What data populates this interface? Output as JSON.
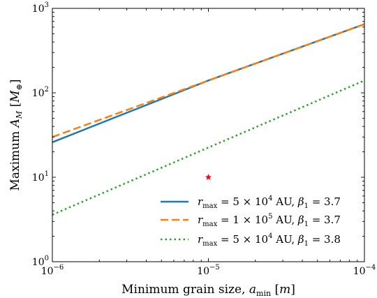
{
  "chart_data": {
    "type": "line",
    "title": "",
    "xlabel": "Minimum grain size, a_min [m]",
    "ylabel": "Maximum A_M [M_⊕]",
    "xscale": "log",
    "yscale": "log",
    "xlim": [
      1e-06,
      0.0001
    ],
    "ylim": [
      1,
      1000
    ],
    "grid": false,
    "legend_position": "lower-right",
    "x_ticks": [
      {
        "value": 1e-06,
        "base": "10",
        "exp": "−6"
      },
      {
        "value": 1e-05,
        "base": "10",
        "exp": "−5"
      },
      {
        "value": 0.0001,
        "base": "10",
        "exp": "−4"
      }
    ],
    "y_ticks": [
      {
        "value": 1,
        "base": "10",
        "exp": "0"
      },
      {
        "value": 10,
        "base": "10",
        "exp": "1"
      },
      {
        "value": 100,
        "base": "10",
        "exp": "2"
      },
      {
        "value": 1000,
        "base": "10",
        "exp": "3"
      }
    ],
    "series": [
      {
        "name": "r_max = 5 × 10^4 AU, β_1 = 3.7",
        "color": "#1f77b4",
        "style": "solid",
        "x": [
          1e-06,
          1e-05,
          0.0001
        ],
        "y": [
          26,
          140,
          650
        ]
      },
      {
        "name": "r_max = 1 × 10^5 AU, β_1 = 3.7",
        "color": "#ff7f0e",
        "style": "dashed",
        "x": [
          1e-06,
          1e-05,
          0.0001
        ],
        "y": [
          30,
          140,
          650
        ]
      },
      {
        "name": "r_max = 5 × 10^4 AU, β_1 = 3.8",
        "color": "#2ca02c",
        "style": "dotted",
        "x": [
          1e-06,
          1e-05,
          0.0001
        ],
        "y": [
          3.6,
          22.5,
          140
        ]
      }
    ],
    "markers": [
      {
        "x": 1e-05,
        "y": 10,
        "symbol": "star",
        "color": "#ff0000"
      }
    ],
    "legend": [
      {
        "sub": "max",
        "coef": "5",
        "exp": "4",
        "unit": "AU",
        "beta": "3.7"
      },
      {
        "sub": "max",
        "coef": "1",
        "exp": "5",
        "unit": "AU",
        "beta": "3.7"
      },
      {
        "sub": "max",
        "coef": "5",
        "exp": "4",
        "unit": "AU",
        "beta": "3.8"
      }
    ]
  }
}
